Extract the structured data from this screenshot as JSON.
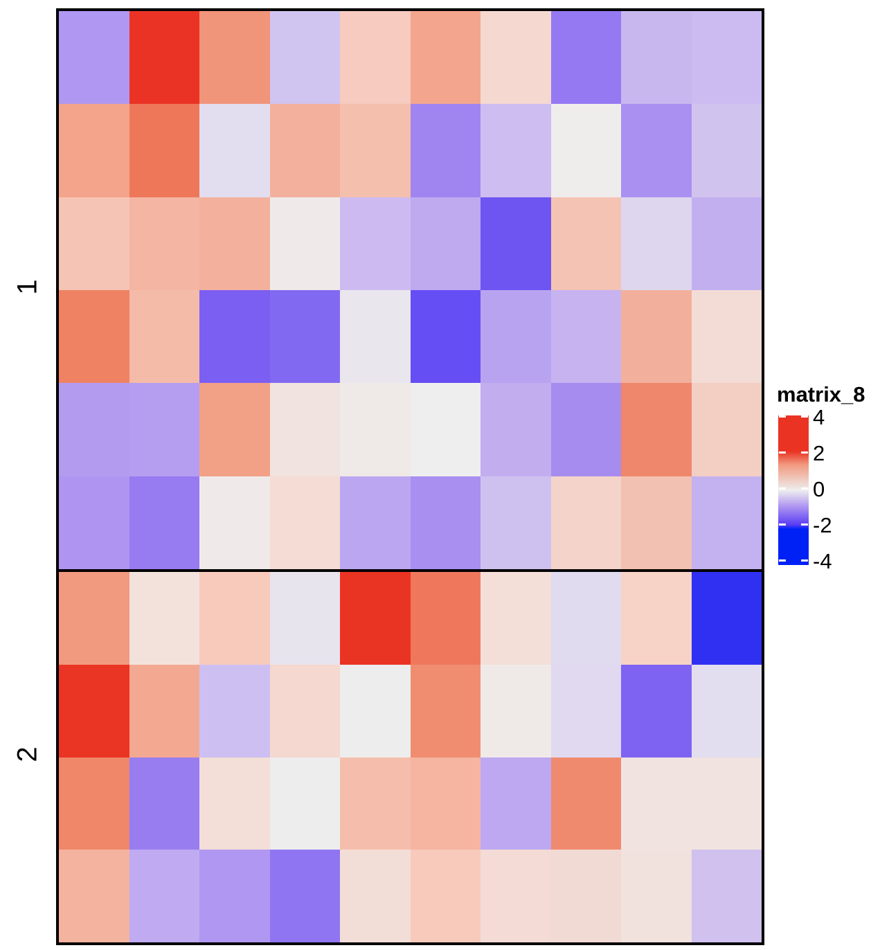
{
  "chart_data": {
    "type": "heatmap",
    "title": "",
    "legend": {
      "title": "matrix_8",
      "ticks": [
        "4",
        "2",
        "0",
        "-2",
        "-4"
      ],
      "tick_values": [
        4,
        2,
        0,
        -2,
        -4
      ],
      "colors": {
        "high": "#EA3323",
        "mid": "#EEEEEE",
        "low": "#0021F5"
      },
      "color_breaks": [
        -2,
        0,
        2
      ]
    },
    "row_slices": [
      {
        "label": "1",
        "rows": 6
      },
      {
        "label": "2",
        "rows": 4
      }
    ],
    "n_columns": 10,
    "values": [
      [
        -0.85,
        2.4,
        1.0,
        -0.4,
        0.4,
        0.85,
        0.25,
        -1.1,
        -0.55,
        -0.5
      ],
      [
        0.85,
        1.3,
        -0.15,
        0.7,
        0.55,
        -0.95,
        -0.45,
        0.0,
        -0.8,
        -0.4
      ],
      [
        0.45,
        0.6,
        0.7,
        0.05,
        -0.45,
        -0.65,
        -1.45,
        0.45,
        -0.2,
        -0.6
      ],
      [
        1.2,
        0.55,
        -1.3,
        -1.2,
        -0.05,
        -1.55,
        -0.7,
        -0.55,
        0.7,
        0.2
      ],
      [
        -0.8,
        -0.75,
        0.9,
        0.1,
        0.05,
        0.0,
        -0.6,
        -0.9,
        1.15,
        0.35
      ],
      [
        -0.85,
        -1.05,
        0.05,
        0.2,
        -0.65,
        -0.85,
        -0.4,
        0.3,
        0.5,
        -0.6
      ],
      [
        0.95,
        0.1,
        0.4,
        -0.1,
        2.3,
        1.3,
        0.2,
        -0.2,
        0.35,
        -1.85
      ],
      [
        2.2,
        0.8,
        -0.4,
        0.25,
        0.0,
        1.05,
        0.05,
        -0.2,
        -1.3,
        -0.15
      ],
      [
        1.15,
        -1.05,
        0.15,
        0.0,
        0.55,
        0.65,
        -0.65,
        1.1,
        0.1,
        0.1
      ],
      [
        0.7,
        -0.65,
        -0.85,
        -1.15,
        0.15,
        0.4,
        0.2,
        0.2,
        0.1,
        -0.45
      ]
    ],
    "cell_colors": [
      [
        "#B097F2",
        "#EA3324",
        "#F1957A",
        "#D0C4F0",
        "#F7CBBF",
        "#F3A68D",
        "#F5D9D0",
        "#9579F2",
        "#C8B7EF",
        "#CBBBF0"
      ],
      [
        "#F3A48B",
        "#EE775A",
        "#E2DDEF",
        "#F3B09D",
        "#F5BFAE",
        "#A085F0",
        "#CEBDF1",
        "#EFECEC",
        "#AA91F1",
        "#D0C4EF"
      ],
      [
        "#F6C4B4",
        "#F5B5A3",
        "#F3B19D",
        "#EFEAE9",
        "#CDBAF1",
        "#BFAAF0",
        "#6E55F2",
        "#F5C3B3",
        "#DED6EF",
        "#C2AFEF"
      ],
      [
        "#F08264",
        "#F5BBA9",
        "#7B5EF2",
        "#8269F1",
        "#E9E6EE",
        "#654EF3",
        "#B8A3F1",
        "#C6B3F0",
        "#F2B09C",
        "#F3DCD6"
      ],
      [
        "#B39CF0",
        "#B59EF0",
        "#F2A187",
        "#F1E3DF",
        "#EFE9E7",
        "#EEEEEE",
        "#C2AEEF",
        "#A78CF0",
        "#EF876C",
        "#F3CFC3"
      ],
      [
        "#AF95F1",
        "#977BF1",
        "#EFEAE9",
        "#F5DCD4",
        "#BBA7F1",
        "#A88FF0",
        "#CFC1EF",
        "#F4D4CA",
        "#F3C1B1",
        "#C4B1EF"
      ],
      [
        "#F19A80",
        "#F3E2DC",
        "#F8CABC",
        "#E7E4EE",
        "#EA3423",
        "#EF785C",
        "#F4DED8",
        "#E1DBEF",
        "#F7D2C6",
        "#3030F3"
      ],
      [
        "#EA3524",
        "#F3A991",
        "#CDBFF2",
        "#F5D8CF",
        "#EDEDED",
        "#F08D71",
        "#EFEAE8",
        "#E0D9EF",
        "#7E63F3",
        "#E2DEEF"
      ],
      [
        "#F08769",
        "#987DF1",
        "#F3DED8",
        "#EDEDED",
        "#F5BEAC",
        "#F5B5A1",
        "#BDA8F1",
        "#F08A6F",
        "#F1E3E0",
        "#F1E3DF"
      ],
      [
        "#F4B39F",
        "#C0AAF1",
        "#B097F1",
        "#9075F2",
        "#F3DED7",
        "#F7CABC",
        "#F4DBD5",
        "#F2DAD4",
        "#F1E2DD",
        "#D0C1EF"
      ]
    ],
    "xlabel": "",
    "ylabel": "",
    "grid": false,
    "legend_position": "right"
  }
}
